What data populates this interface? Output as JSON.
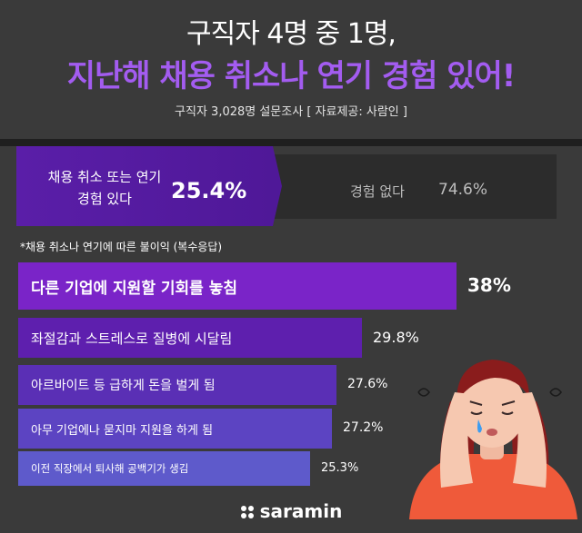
{
  "header": {
    "title_line1": "구직자 4명 중 1명,",
    "title_line2": "지난해 채용 취소나 연기 경험 있어!",
    "subtitle": "구직자 3,028명 설문조사  [ 자료제공: 사람인 ]"
  },
  "summary": {
    "yes_label_line1": "채용 취소 또는 연기",
    "yes_label_line2": "경험 있다",
    "yes_value": "25.4%",
    "no_label": "경험 없다",
    "no_value": "74.6%"
  },
  "note": "*채용 취소나 연기에 따른 불이익 (복수응답)",
  "chart_data": [
    {
      "type": "bar",
      "categories": [
        "채용 취소 또는 연기 경험 있다",
        "경험 없다"
      ],
      "values": [
        25.4,
        74.6
      ]
    },
    {
      "type": "bar",
      "title": "*채용 취소나 연기에 따른 불이익 (복수응답)",
      "categories": [
        "다른 기업에 지원할 기회를 놓침",
        "좌절감과 스트레스로 질병에 시달림",
        "아르바이트 등 급하게 돈을 벌게 됨",
        "아무 기업에나 묻지마 지원을 하게 됨",
        "이전 직장에서 퇴사해 공백기가 생김"
      ],
      "values": [
        38,
        29.8,
        27.6,
        27.2,
        25.3
      ],
      "value_labels": [
        "38%",
        "29.8%",
        "27.6%",
        "27.2%",
        "25.3%"
      ]
    }
  ],
  "logo": {
    "text": "saramin"
  },
  "colors": {
    "background": "#3a3a3a",
    "title_accent": "#a35cf0",
    "bar_primary": "#7a24c8"
  }
}
